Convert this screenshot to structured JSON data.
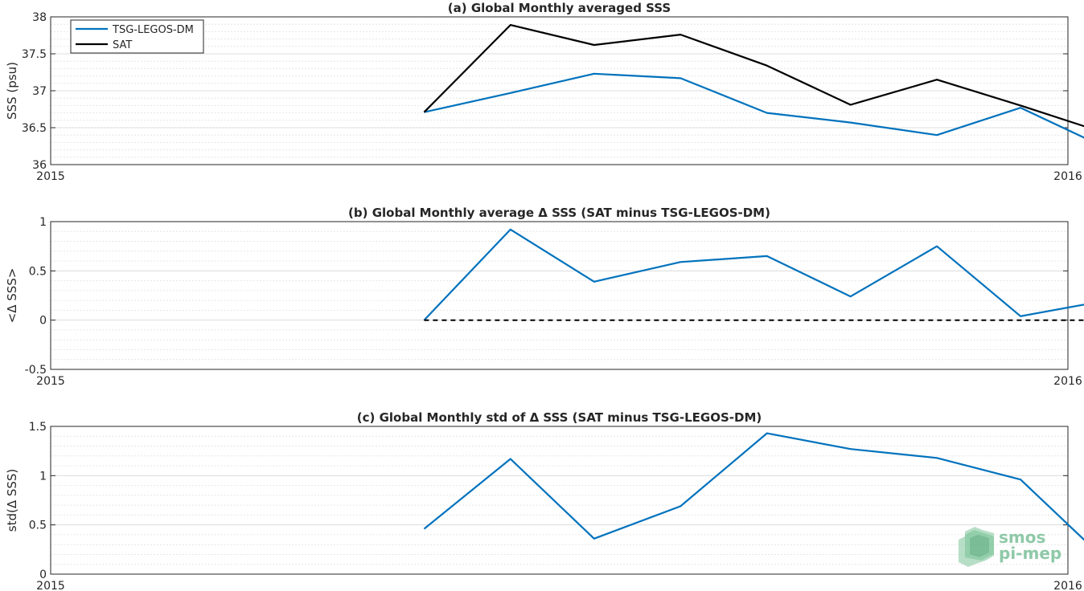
{
  "colors": {
    "tsg": "#0072BD",
    "sat": "#000000",
    "zero_line": "#000000",
    "logo": "#7cc49a"
  },
  "logo": {
    "line1": "smos",
    "line2": "pi-mep",
    "icon": "smos-pi-mep-logo-icon"
  },
  "chart_data": [
    {
      "type": "line",
      "title": "(a) Global Monthly averaged SSS",
      "xlabel": "",
      "ylabel": "SSS (psu)",
      "x_axis": {
        "type": "date",
        "range": [
          "2015-01-01",
          "2016-01-01"
        ],
        "tick_labels": [
          "2015",
          "2016"
        ]
      },
      "ylim": [
        36,
        38
      ],
      "yticks": [
        36,
        36.5,
        37,
        37.5,
        38
      ],
      "ytick_labels": [
        "36",
        "36.5",
        "37",
        "37.5",
        "38"
      ],
      "grid": true,
      "minor_grid": true,
      "legend": {
        "placement": "top-left",
        "entries": [
          "TSG-LEGOS-DM",
          "SAT"
        ]
      },
      "x": [
        "2015-05-15",
        "2015-06-15",
        "2015-07-15",
        "2015-08-15",
        "2015-09-15",
        "2015-10-15",
        "2015-11-15",
        "2015-12-15",
        "2016-01-15"
      ],
      "series": [
        {
          "name": "TSG-LEGOS-DM",
          "color": "#0072BD",
          "values": [
            36.71,
            36.97,
            37.23,
            37.17,
            36.7,
            36.57,
            36.4,
            36.77,
            36.22
          ]
        },
        {
          "name": "SAT",
          "color": "#000000",
          "values": [
            36.71,
            37.89,
            37.62,
            37.76,
            37.34,
            36.81,
            37.15,
            36.8,
            36.42
          ]
        }
      ]
    },
    {
      "type": "line",
      "title": "(b) Global Monthly average Δ SSS (SAT minus TSG-LEGOS-DM)",
      "xlabel": "",
      "ylabel": "<Δ SSS>",
      "x_axis": {
        "type": "date",
        "range": [
          "2015-01-01",
          "2016-01-01"
        ],
        "tick_labels": [
          "2015",
          "2016"
        ]
      },
      "ylim": [
        -0.5,
        1
      ],
      "yticks": [
        -0.5,
        0,
        0.5,
        1
      ],
      "ytick_labels": [
        "-0.5",
        "0",
        "0.5",
        "1"
      ],
      "grid": true,
      "minor_grid": true,
      "x": [
        "2015-05-15",
        "2015-06-15",
        "2015-07-15",
        "2015-08-15",
        "2015-09-15",
        "2015-10-15",
        "2015-11-15",
        "2015-12-15",
        "2016-01-15"
      ],
      "series": [
        {
          "color": "#0072BD",
          "values": [
            0.0,
            0.92,
            0.39,
            0.59,
            0.65,
            0.24,
            0.75,
            0.04,
            0.2
          ]
        },
        {
          "color": "#000000",
          "style": "dashed",
          "values": [
            0,
            0,
            0,
            0,
            0,
            0,
            0,
            0,
            0
          ]
        }
      ]
    },
    {
      "type": "line",
      "title": "(c) Global Monthly std of Δ SSS (SAT minus TSG-LEGOS-DM)",
      "xlabel": "",
      "ylabel": "std(Δ SSS)",
      "x_axis": {
        "type": "date",
        "range": [
          "2015-01-01",
          "2016-01-01"
        ],
        "tick_labels": [
          "2015",
          "2016"
        ]
      },
      "ylim": [
        0,
        1.5
      ],
      "yticks": [
        0,
        0.5,
        1,
        1.5
      ],
      "ytick_labels": [
        "0",
        "0.5",
        "1",
        "1.5"
      ],
      "grid": true,
      "minor_grid": true,
      "x": [
        "2015-05-15",
        "2015-06-15",
        "2015-07-15",
        "2015-08-15",
        "2015-09-15",
        "2015-10-15",
        "2015-11-15",
        "2015-12-15",
        "2016-01-15"
      ],
      "series": [
        {
          "color": "#0072BD",
          "values": [
            0.46,
            1.17,
            0.36,
            0.69,
            1.43,
            1.27,
            1.18,
            0.96,
            0.13
          ]
        }
      ]
    }
  ]
}
